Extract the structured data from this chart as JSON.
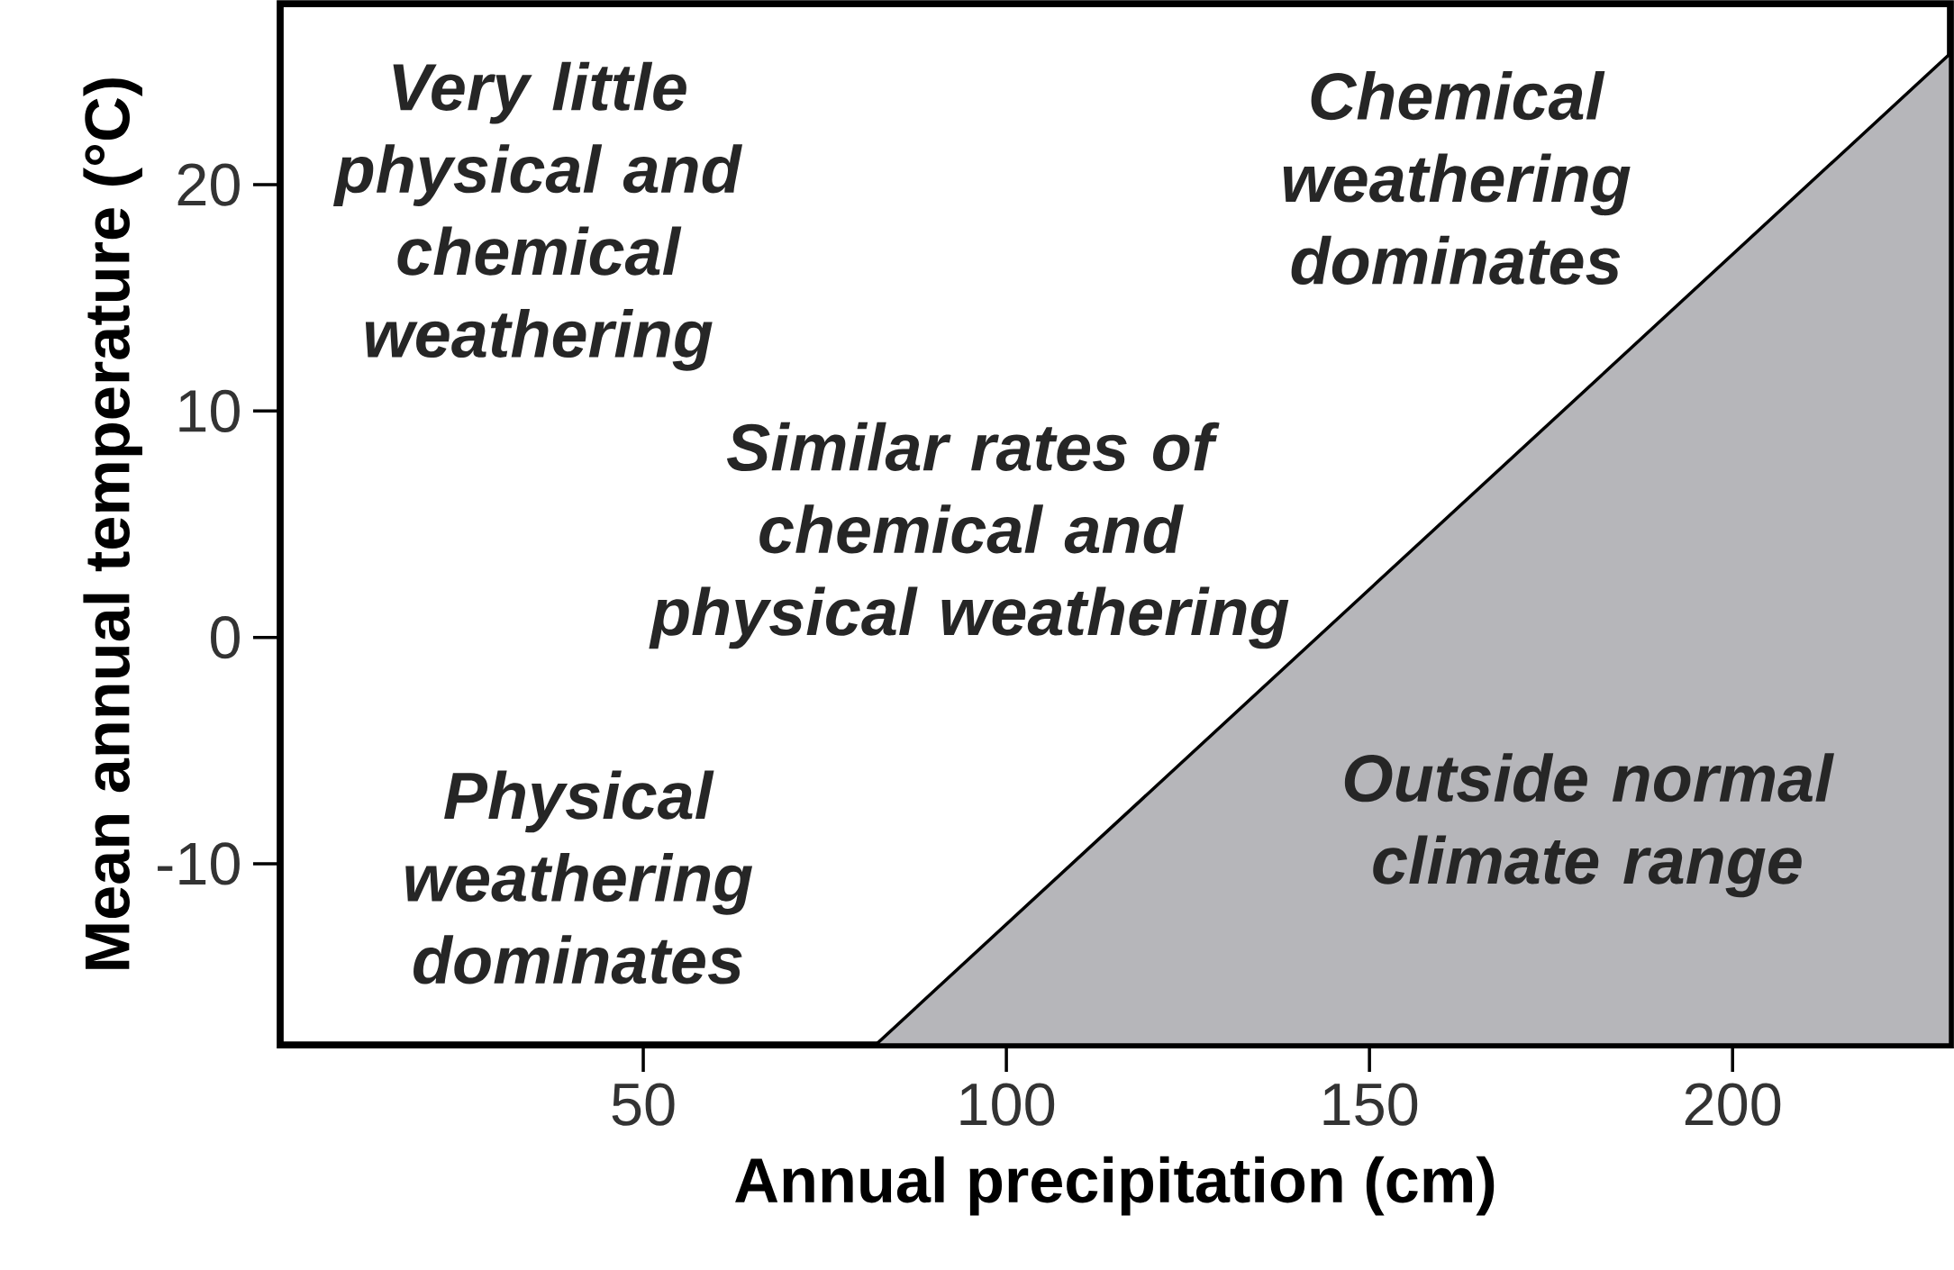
{
  "chart_data": {
    "type": "area",
    "xlabel": "Annual precipitation (cm)",
    "ylabel": "Mean annual temperature (°C)",
    "xlim": [
      0,
      230
    ],
    "ylim": [
      -18,
      28
    ],
    "xticks": [
      50,
      100,
      150,
      200
    ],
    "yticks": [
      -10,
      0,
      10,
      20
    ],
    "series": [
      {
        "color": "#b6b6ba",
        "x": [
          82,
          230
        ],
        "values": [
          -18,
          25.8
        ]
      }
    ],
    "annotations": [
      "Very little physical and chemical weathering",
      "Chemical weathering dominates",
      "Similar rates of chemical and physical weathering",
      "Physical weathering dominates",
      "Outside normal climate range"
    ]
  }
}
